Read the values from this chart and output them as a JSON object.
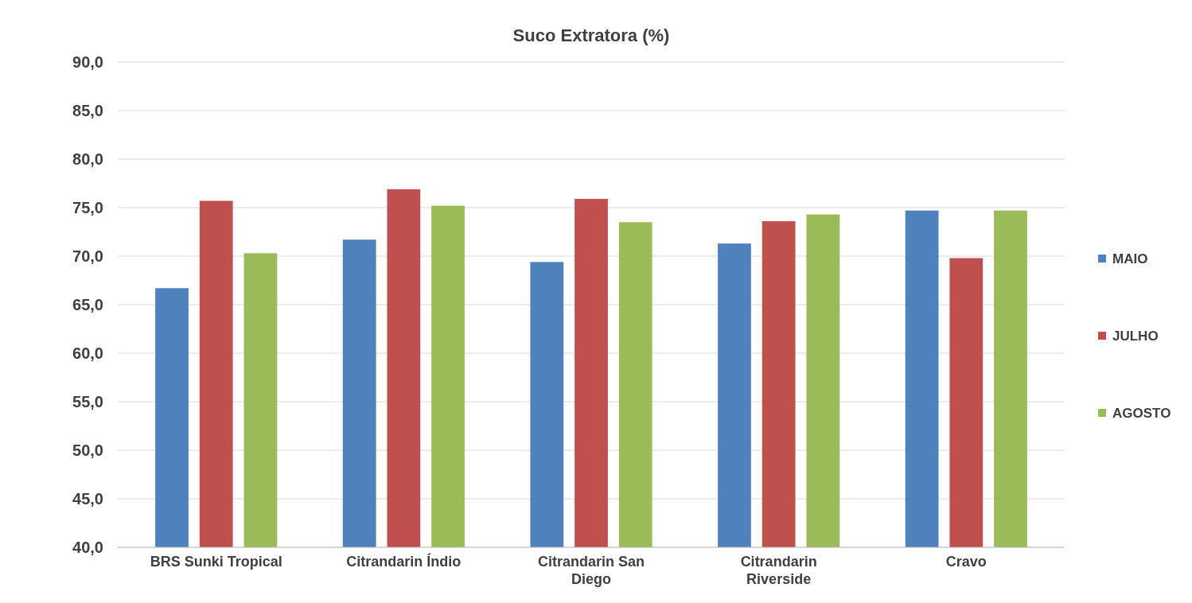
{
  "chart_data": {
    "type": "bar",
    "title": "Suco Extratora (%)",
    "categories": [
      "BRS Sunki Tropical",
      "Citrandarin Índio",
      "Citrandarin San Diego",
      "Citrandarin Riverside",
      "Cravo"
    ],
    "series": [
      {
        "name": "MAIO",
        "color": "#4f81bd",
        "values": [
          66.7,
          71.7,
          69.4,
          71.3,
          74.7
        ]
      },
      {
        "name": "JULHO",
        "color": "#c0504d",
        "values": [
          75.7,
          76.9,
          75.9,
          73.6,
          69.8
        ]
      },
      {
        "name": "AGOSTO",
        "color": "#9bbb59",
        "values": [
          70.3,
          75.2,
          73.5,
          74.3,
          74.7
        ]
      }
    ],
    "ylim": [
      40,
      90
    ],
    "yticks": [
      {
        "value": 40,
        "label": "40,0"
      },
      {
        "value": 45,
        "label": "45,0"
      },
      {
        "value": 50,
        "label": "50,0"
      },
      {
        "value": 55,
        "label": "55,0"
      },
      {
        "value": 60,
        "label": "60,0"
      },
      {
        "value": 65,
        "label": "65,0"
      },
      {
        "value": 70,
        "label": "70,0"
      },
      {
        "value": 75,
        "label": "75,0"
      },
      {
        "value": 80,
        "label": "80,0"
      },
      {
        "value": 85,
        "label": "85,0"
      },
      {
        "value": 90,
        "label": "90,0"
      }
    ],
    "grid": "y",
    "legend": "right"
  }
}
